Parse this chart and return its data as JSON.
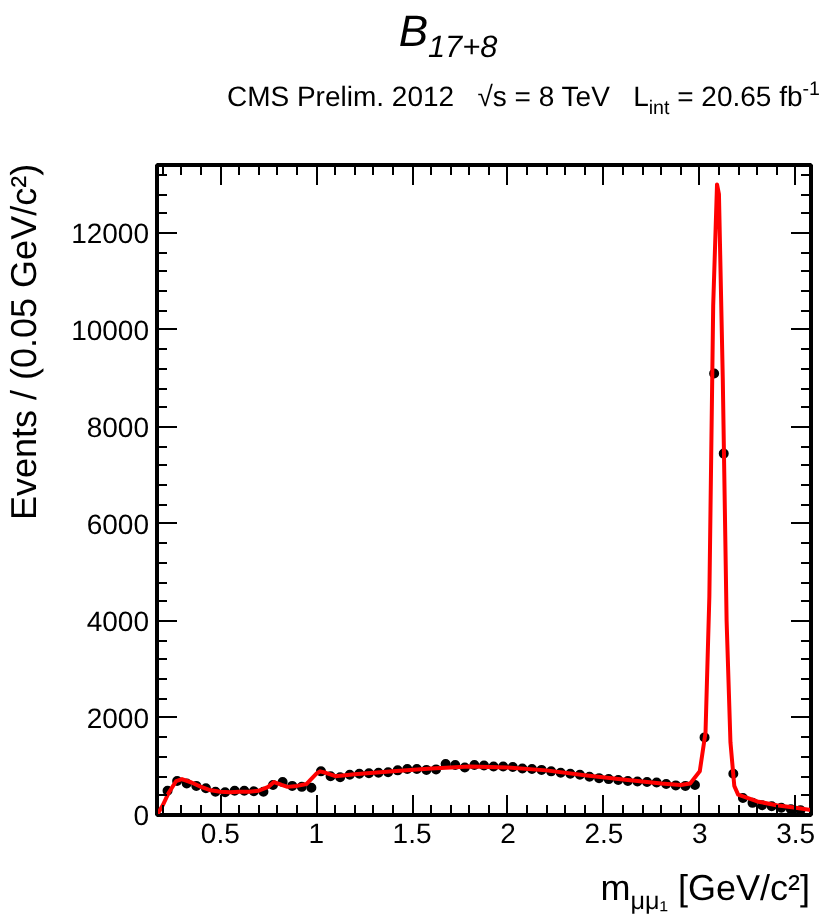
{
  "chart_data": {
    "type": "scatter",
    "title": "B$_{17+8}$",
    "annotations": [
      "CMS Prelim. 2012   √s = 8 TeV   L$_{int}$ = 20.65 fb$^{-1}$"
    ],
    "xlabel": "m$_{μμ₁}$ [GeV/c²]",
    "ylabel": "Events / (0.05 GeV/c²)",
    "xlim": [
      0.17,
      3.58
    ],
    "ylim": [
      0,
      13400
    ],
    "xticks": [
      0.5,
      1,
      1.5,
      2,
      2.5,
      3,
      3.5
    ],
    "yticks": [
      0,
      2000,
      4000,
      6000,
      8000,
      10000,
      12000
    ],
    "grid": false,
    "series": [
      {
        "marker": "circle",
        "color": "#000000",
        "x": [
          0.225,
          0.275,
          0.325,
          0.375,
          0.425,
          0.475,
          0.525,
          0.575,
          0.625,
          0.675,
          0.725,
          0.775,
          0.825,
          0.875,
          0.925,
          0.975,
          1.025,
          1.075,
          1.125,
          1.175,
          1.225,
          1.275,
          1.325,
          1.375,
          1.425,
          1.475,
          1.525,
          1.575,
          1.625,
          1.675,
          1.725,
          1.775,
          1.825,
          1.875,
          1.925,
          1.975,
          2.025,
          2.075,
          2.125,
          2.175,
          2.225,
          2.275,
          2.325,
          2.375,
          2.425,
          2.475,
          2.525,
          2.575,
          2.625,
          2.675,
          2.725,
          2.775,
          2.825,
          2.875,
          2.925,
          2.975,
          3.025,
          3.075,
          3.125,
          3.175,
          3.225,
          3.275,
          3.325,
          3.375,
          3.425,
          3.475,
          3.525
        ],
        "values": [
          500,
          700,
          650,
          600,
          550,
          480,
          470,
          500,
          500,
          490,
          480,
          620,
          680,
          600,
          580,
          560,
          900,
          800,
          780,
          830,
          850,
          860,
          870,
          880,
          920,
          950,
          950,
          930,
          940,
          1050,
          1030,
          980,
          1030,
          1020,
          1000,
          1000,
          990,
          960,
          950,
          930,
          900,
          870,
          850,
          830,
          790,
          760,
          740,
          720,
          700,
          690,
          680,
          670,
          640,
          610,
          600,
          620,
          1600,
          9100,
          7450,
          850,
          350,
          250,
          200,
          180,
          150,
          120,
          100
        ]
      },
      {
        "type": "line",
        "line_style": "solid",
        "color": "#ff0000",
        "x": [
          0.17,
          0.2,
          0.23,
          0.27,
          0.3,
          0.35,
          0.4,
          0.45,
          0.5,
          0.55,
          0.6,
          0.65,
          0.7,
          0.75,
          0.78,
          0.82,
          0.85,
          0.9,
          0.95,
          1.0,
          1.02,
          1.05,
          1.1,
          1.2,
          1.4,
          1.6,
          1.8,
          2.0,
          2.2,
          2.4,
          2.6,
          2.8,
          2.9,
          2.95,
          3.0,
          3.03,
          3.05,
          3.07,
          3.09,
          3.1,
          3.12,
          3.14,
          3.16,
          3.18,
          3.2,
          3.3,
          3.4,
          3.5,
          3.58
        ],
        "values": [
          0,
          200,
          450,
          700,
          740,
          670,
          580,
          510,
          480,
          470,
          480,
          480,
          500,
          580,
          680,
          620,
          580,
          600,
          640,
          850,
          900,
          870,
          800,
          840,
          900,
          960,
          1000,
          980,
          920,
          820,
          730,
          650,
          620,
          650,
          900,
          1700,
          4500,
          10500,
          13000,
          12800,
          9000,
          4000,
          1500,
          600,
          420,
          280,
          200,
          150,
          100
        ]
      }
    ]
  }
}
